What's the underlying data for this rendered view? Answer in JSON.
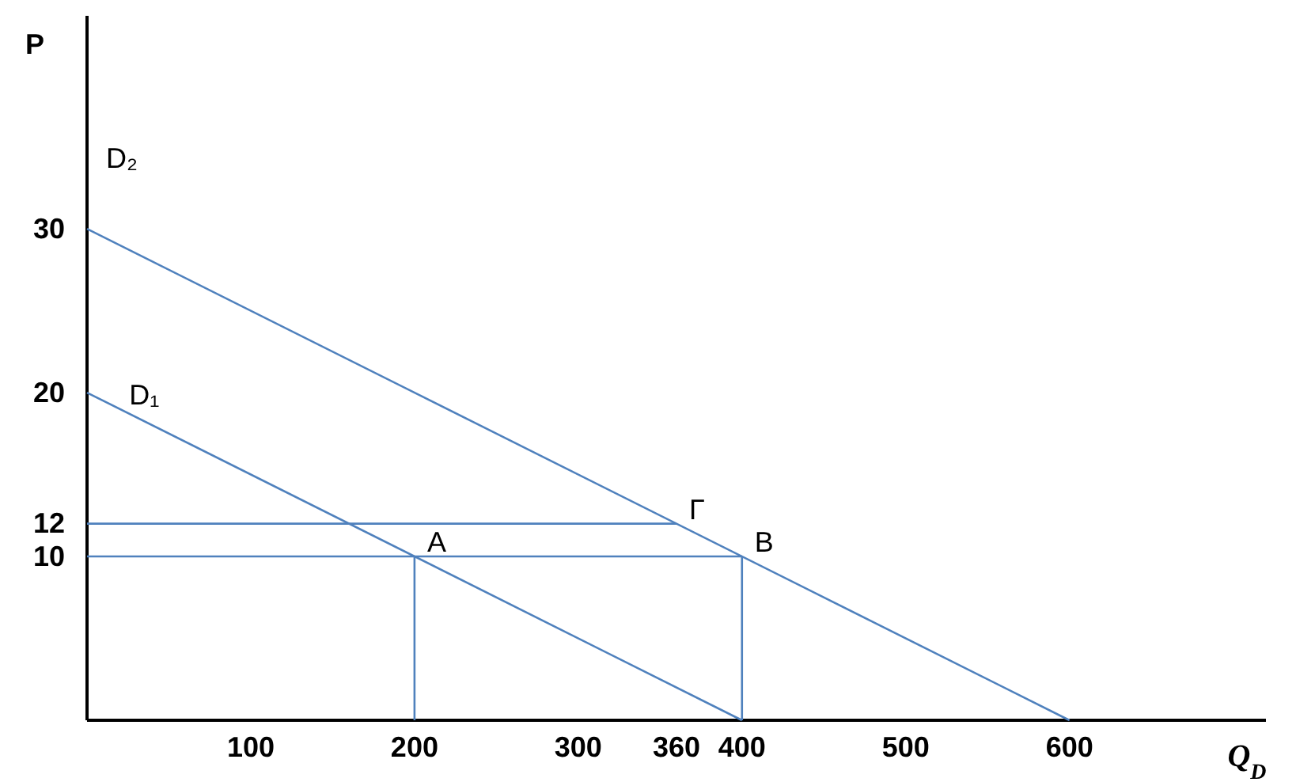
{
  "chart_data": {
    "type": "line",
    "xlabel": "Q$_{D}$",
    "ylabel": "P",
    "xlim": [
      0,
      720
    ],
    "ylim": [
      0,
      43
    ],
    "xticks": [
      100,
      200,
      300,
      360,
      400,
      500,
      600
    ],
    "yticks": [
      10,
      12,
      20,
      30
    ],
    "grid": false,
    "marker": "none",
    "line_style": "solid",
    "series": [
      {
        "color": "#4f81bd",
        "x": [
          0,
          400
        ],
        "values": [
          20,
          0
        ]
      },
      {
        "color": "#4f81bd",
        "x": [
          0,
          600
        ],
        "values": [
          30,
          0
        ]
      },
      {
        "color": "#4f81bd",
        "x": [
          0,
          360
        ],
        "values": [
          12,
          12
        ]
      },
      {
        "color": "#4f81bd",
        "x": [
          0,
          400
        ],
        "values": [
          10,
          10
        ]
      },
      {
        "color": "#4f81bd",
        "x": [
          200,
          200
        ],
        "values": [
          0,
          10
        ]
      },
      {
        "color": "#4f81bd",
        "x": [
          400,
          400
        ],
        "values": [
          0,
          10
        ]
      }
    ],
    "annotations": [
      "D₂",
      {
        "text": "D₁",
        "x": 18,
        "y": 19
      },
      {
        "text": "Γ",
        "x": 360,
        "y": 12
      },
      {
        "text": "A",
        "x": 200,
        "y": 10
      },
      {
        "text": "B",
        "x": 400,
        "y": 10
      }
    ]
  }
}
